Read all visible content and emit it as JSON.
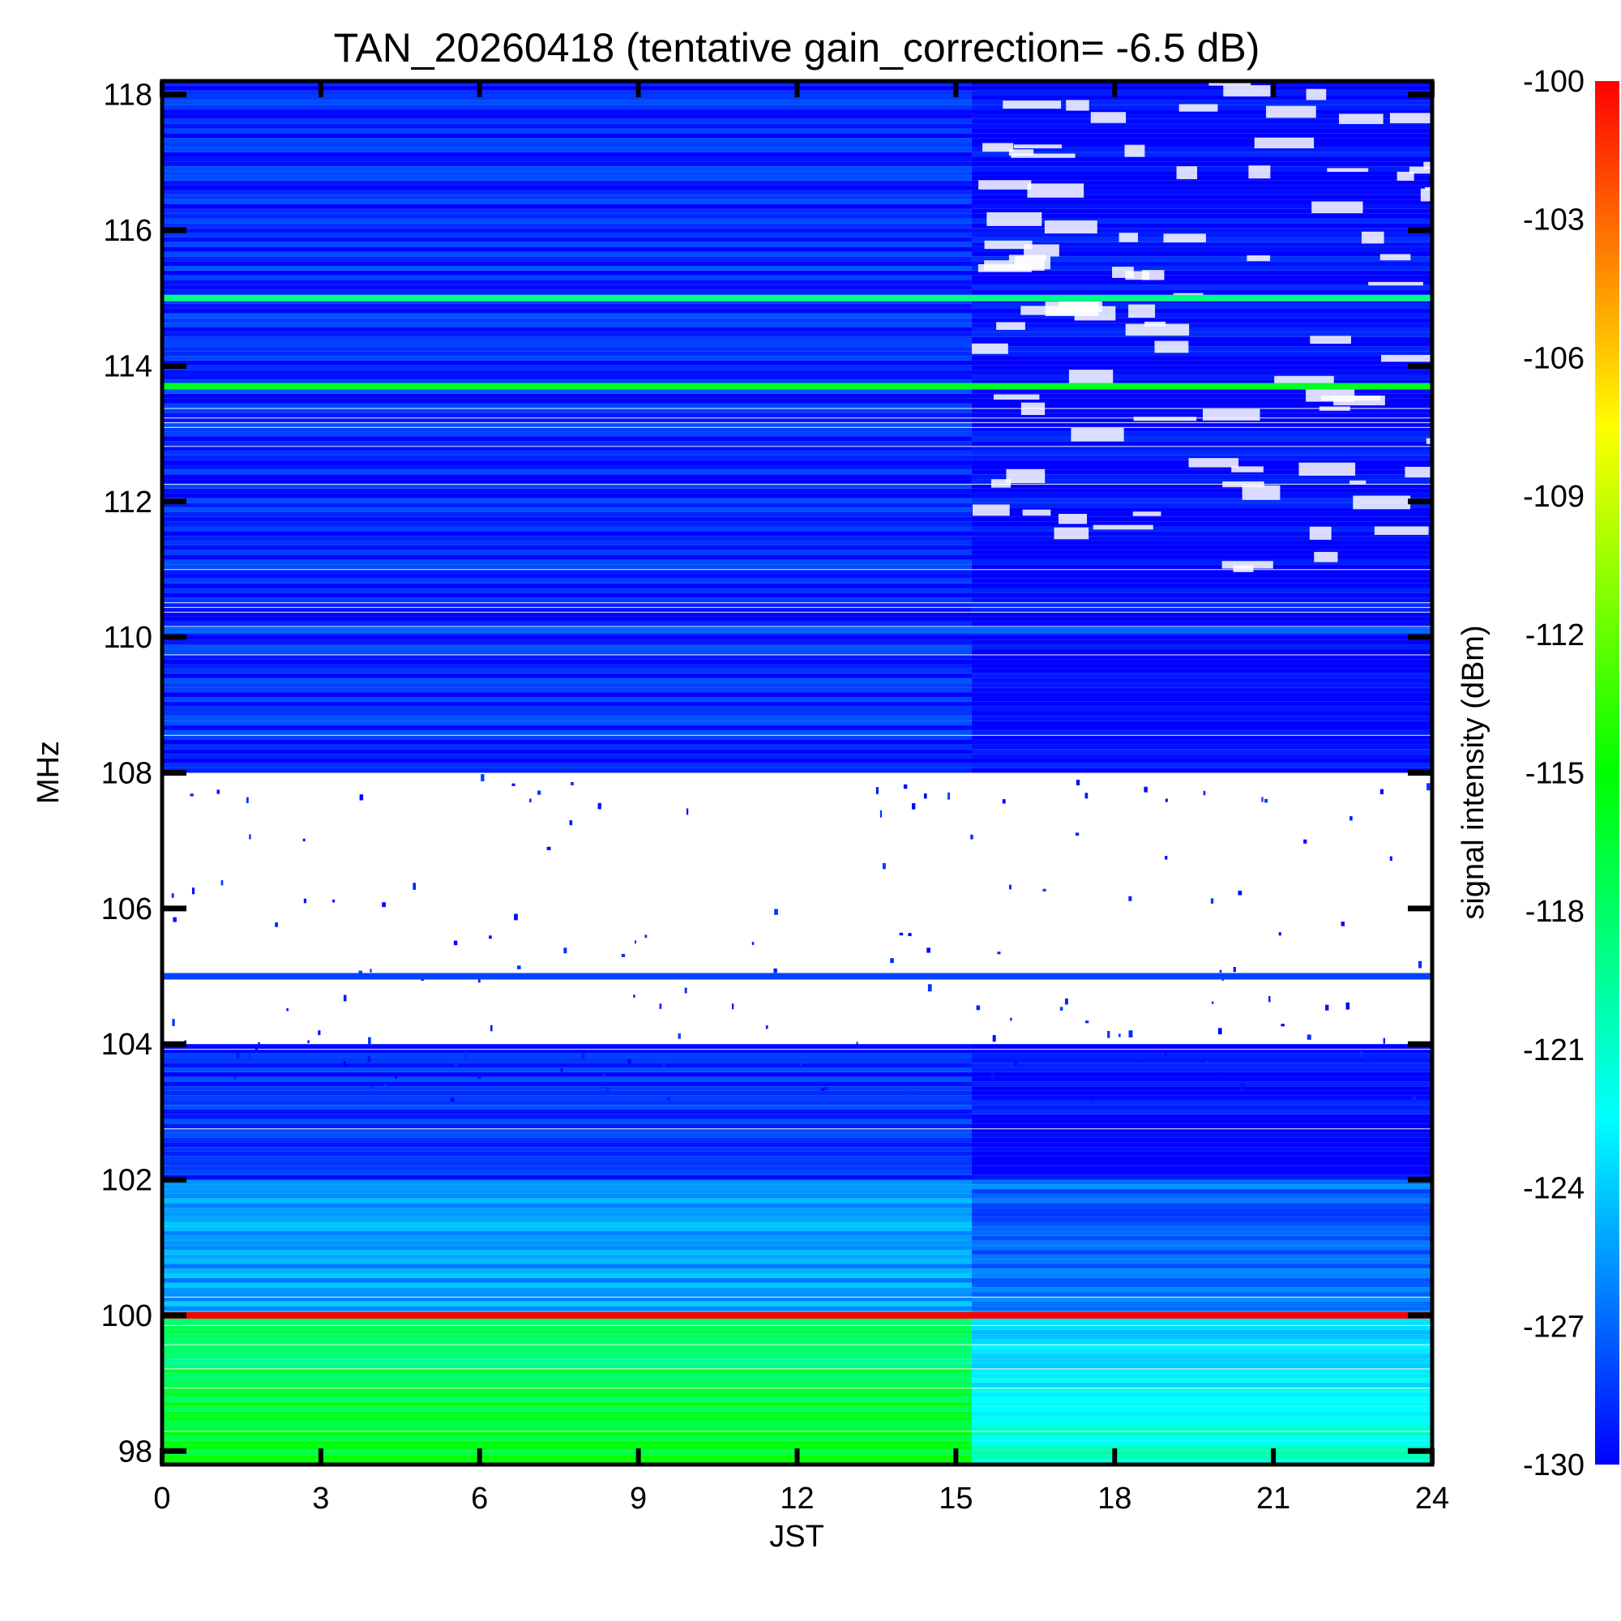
{
  "chart_data": {
    "type": "heatmap",
    "title": "TAN_20260418 (tentative gain_correction= -6.5 dB)",
    "xlabel": "JST",
    "ylabel": "MHz",
    "xlim": [
      0,
      24
    ],
    "ylim": [
      97.8,
      118.2
    ],
    "x_ticks": [
      "0",
      "3",
      "6",
      "9",
      "12",
      "15",
      "18",
      "21",
      "24"
    ],
    "y_ticks": [
      "98",
      "100",
      "102",
      "104",
      "106",
      "108",
      "110",
      "112",
      "114",
      "116",
      "118"
    ],
    "colorbar": {
      "label": "signal intensity (dBm)",
      "range": [
        -130,
        -100
      ],
      "ticks": [
        "-100",
        "-103",
        "-106",
        "-109",
        "-112",
        "-115",
        "-118",
        "-121",
        "-124",
        "-127",
        "-130"
      ],
      "colormap": [
        "#0000ff",
        "#00ffff",
        "#00ff00",
        "#ffff00",
        "#ff0000"
      ]
    },
    "regime_change_time_jst": 15.3,
    "persistent_signals_mhz": [
      {
        "freq": 100.0,
        "level_dbm": -100
      },
      {
        "freq": 105.0,
        "level_dbm": -128
      },
      {
        "freq": 113.7,
        "level_dbm": -116
      },
      {
        "freq": 115.0,
        "level_dbm": -119
      },
      {
        "freq": 110.1,
        "level_dbm": -127
      }
    ],
    "bands": [
      {
        "from": 97.8,
        "to": 100.0,
        "level_before_dbm": -116,
        "level_after_dbm": -121
      },
      {
        "from": 100.0,
        "to": 102.0,
        "level_before_dbm": -125,
        "level_after_dbm": -127
      },
      {
        "from": 102.0,
        "to": 104.0,
        "level_before_dbm": -129,
        "level_after_dbm": -130
      },
      {
        "from": 108.0,
        "to": 118.2,
        "level_before_dbm": -129,
        "level_after_dbm": -130
      }
    ]
  }
}
